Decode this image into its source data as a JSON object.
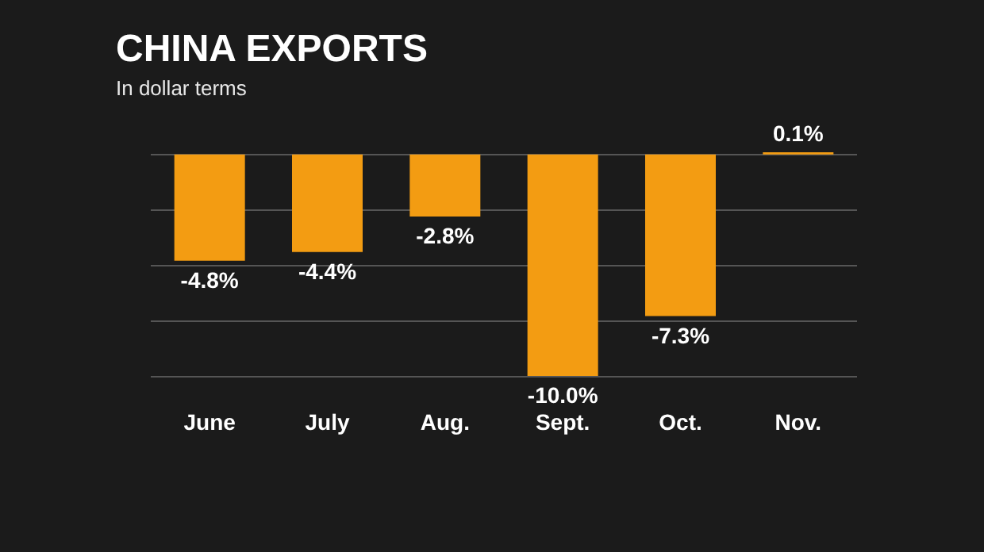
{
  "chart_data": {
    "type": "bar",
    "title": "CHINA EXPORTS",
    "subtitle": "In dollar terms",
    "categories": [
      "June",
      "July",
      "Aug.",
      "Sept.",
      "Oct.",
      "Nov."
    ],
    "values": [
      -4.8,
      -4.4,
      -2.8,
      -10.0,
      -7.3,
      0.1
    ],
    "value_labels": [
      "-4.8%",
      "-4.4%",
      "-2.8%",
      "-10.0%",
      "-7.3%",
      "0.1%"
    ],
    "color": "#f39c12",
    "yticks": [
      {
        "value": -10,
        "label": null
      },
      {
        "value": -7.5,
        "label": null
      },
      {
        "value": -5,
        "label": null
      },
      {
        "value": -2.5,
        "label": null
      },
      {
        "value": 0,
        "label": null
      }
    ],
    "grid": "y",
    "tick_labels": "x"
  }
}
